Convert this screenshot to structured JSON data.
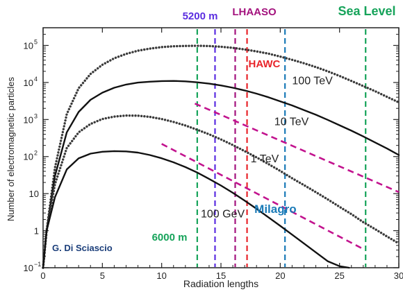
{
  "chart_data": {
    "type": "line",
    "xlabel": "Radiation lengths",
    "ylabel": "Number of electromagnetic particles",
    "xlim": [
      0,
      30
    ],
    "ylim": [
      0.1,
      300000
    ],
    "yscale": "log",
    "x_ticks": [
      "0",
      "5",
      "10",
      "15",
      "20",
      "25",
      "30"
    ],
    "y_ticks": [
      {
        "value": 0.1,
        "base": "10",
        "exp": "−1"
      },
      {
        "value": 1,
        "base": "1",
        "exp": ""
      },
      {
        "value": 10,
        "base": "10",
        "exp": ""
      },
      {
        "value": 100,
        "base": "10",
        "exp": "2"
      },
      {
        "value": 1000,
        "base": "10",
        "exp": "3"
      },
      {
        "value": 10000,
        "base": "10",
        "exp": "4"
      },
      {
        "value": 100000,
        "base": "10",
        "exp": "5"
      }
    ],
    "grid": false,
    "credit": "G. Di Sciascio",
    "series": [
      {
        "name": "100 TeV",
        "style": "dotted",
        "color": "#3a3a3a",
        "x": [
          0,
          0.3,
          1,
          2,
          3,
          4,
          5,
          6,
          7,
          8,
          9,
          10,
          11,
          12,
          13,
          14,
          15,
          16,
          17,
          18,
          19,
          20,
          21,
          22,
          23,
          24,
          25,
          26,
          27,
          28,
          29,
          30
        ],
        "y": [
          0.1,
          1,
          50,
          1400,
          7000,
          17000,
          30000,
          45000,
          59000,
          72000,
          82000,
          90000,
          95000,
          97000,
          98000,
          96000,
          92000,
          86000,
          78000,
          69000,
          60000,
          50000,
          41000,
          33000,
          26000,
          20000,
          15000,
          11000,
          8000,
          5800,
          4100,
          2900
        ]
      },
      {
        "name": "10 TeV",
        "style": "solid",
        "color": "#111111",
        "x": [
          0,
          0.3,
          1,
          2,
          3,
          4,
          5,
          6,
          7,
          8,
          9,
          10,
          11,
          12,
          13,
          14,
          15,
          16,
          17,
          18,
          19,
          20,
          21,
          22,
          23,
          24,
          25,
          26,
          27,
          28,
          29,
          30
        ],
        "y": [
          0.1,
          1,
          30,
          450,
          1600,
          3400,
          5300,
          7200,
          8800,
          9900,
          10500,
          10900,
          11000,
          10700,
          10100,
          9300,
          8300,
          7200,
          6100,
          5000,
          4000,
          3100,
          2400,
          1800,
          1350,
          980,
          700,
          500,
          350,
          240,
          165,
          110
        ]
      },
      {
        "name": "1 TeV",
        "style": "dotted",
        "color": "#3a3a3a",
        "x": [
          0,
          0.3,
          1,
          2,
          3,
          4,
          5,
          6,
          7,
          8,
          9,
          10,
          11,
          12,
          13,
          14,
          15,
          16,
          17,
          18,
          19,
          20,
          21,
          22,
          23,
          24,
          25,
          26,
          27,
          28,
          29,
          30
        ],
        "y": [
          0.1,
          1,
          18,
          170,
          450,
          760,
          1030,
          1200,
          1280,
          1270,
          1180,
          1030,
          860,
          690,
          530,
          400,
          290,
          205,
          140,
          95,
          63,
          41,
          26,
          17,
          11,
          7,
          4.4,
          2.8,
          1.7,
          1.1,
          0.7,
          0.45
        ]
      },
      {
        "name": "100 GeV",
        "style": "solid",
        "color": "#111111",
        "x": [
          0,
          0.3,
          1,
          2,
          3,
          4,
          5,
          6,
          7,
          8,
          9,
          10,
          11,
          12,
          13,
          14,
          15,
          16,
          17,
          18,
          19,
          20,
          21,
          22,
          23,
          24,
          25,
          25.8
        ],
        "y": [
          0.1,
          1,
          8,
          45,
          90,
          120,
          135,
          140,
          138,
          128,
          110,
          90,
          70,
          52,
          37,
          25,
          16.5,
          10.5,
          6.5,
          3.9,
          2.3,
          1.35,
          0.78,
          0.45,
          0.26,
          0.15,
          0.11,
          0.1
        ]
      }
    ],
    "attenuation_lines": [
      {
        "color": "#c2138e",
        "x": [
          12.8,
          30
        ],
        "y": [
          2700,
          11
        ]
      },
      {
        "color": "#c2138e",
        "x": [
          10,
          27
        ],
        "y": [
          220,
          0.32
        ]
      }
    ],
    "curve_labels": [
      {
        "text": "100 TeV",
        "x": 21.0,
        "y": 9000
      },
      {
        "text": "10 TeV",
        "x": 19.5,
        "y": 700
      },
      {
        "text": "1 TeV",
        "x": 17.5,
        "y": 70
      },
      {
        "text": "100 GeV",
        "x": 13.3,
        "y": 2.3
      }
    ],
    "altitude_lines": [
      {
        "text": "5200 m",
        "color": "#5a2de0",
        "x": 14.5,
        "label_side": "top"
      },
      {
        "text": "LHAASO",
        "color": "#a3127d",
        "x": 16.2,
        "label_side": "top"
      },
      {
        "text": "HAWC",
        "color": "#e8242a",
        "x": 17.2,
        "label_side": "inside"
      },
      {
        "text": "Milagro",
        "color": "#1b7bb8",
        "x": 20.4,
        "label_side": "inside"
      },
      {
        "text": "6000 m",
        "color": "#16a35a",
        "x": 13.0,
        "label_side": "inside"
      },
      {
        "text": "Sea Level",
        "color": "#16a35a",
        "x": 27.2,
        "label_side": "top"
      }
    ]
  }
}
